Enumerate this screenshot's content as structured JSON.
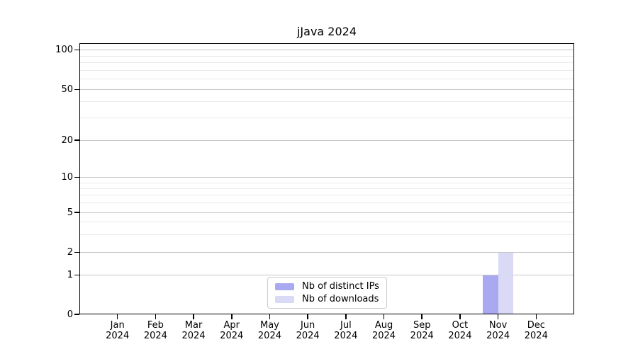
{
  "chart_data": {
    "type": "bar",
    "title": "jJava 2024",
    "categories": [
      "Jan 2024",
      "Feb 2024",
      "Mar 2024",
      "Apr 2024",
      "May 2024",
      "Jun 2024",
      "Jul 2024",
      "Aug 2024",
      "Sep 2024",
      "Oct 2024",
      "Nov 2024",
      "Dec 2024"
    ],
    "series": [
      {
        "name": "Nb of distinct IPs",
        "color": "#a9a9f2",
        "values": [
          0,
          0,
          0,
          0,
          0,
          0,
          0,
          0,
          0,
          0,
          1,
          0
        ]
      },
      {
        "name": "Nb of downloads",
        "color": "#dadaf6",
        "values": [
          0,
          0,
          0,
          0,
          0,
          0,
          0,
          0,
          0,
          0,
          2,
          0
        ]
      }
    ],
    "yscale": "symlog",
    "y_ticks": [
      0,
      1,
      2,
      5,
      10,
      20,
      50,
      100
    ],
    "y_minor_ticks": [
      3,
      4,
      6,
      7,
      8,
      9,
      30,
      40,
      60,
      70,
      80,
      90
    ],
    "ylim": [
      0,
      110
    ],
    "xlabel": "",
    "ylabel": "",
    "grid": true,
    "legend_position": "lower center",
    "colors": {
      "major_grid": "#c6c6c6",
      "minor_grid": "#e9e9e9",
      "axis": "#000000",
      "text": "#000000",
      "background": "#ffffff"
    }
  }
}
